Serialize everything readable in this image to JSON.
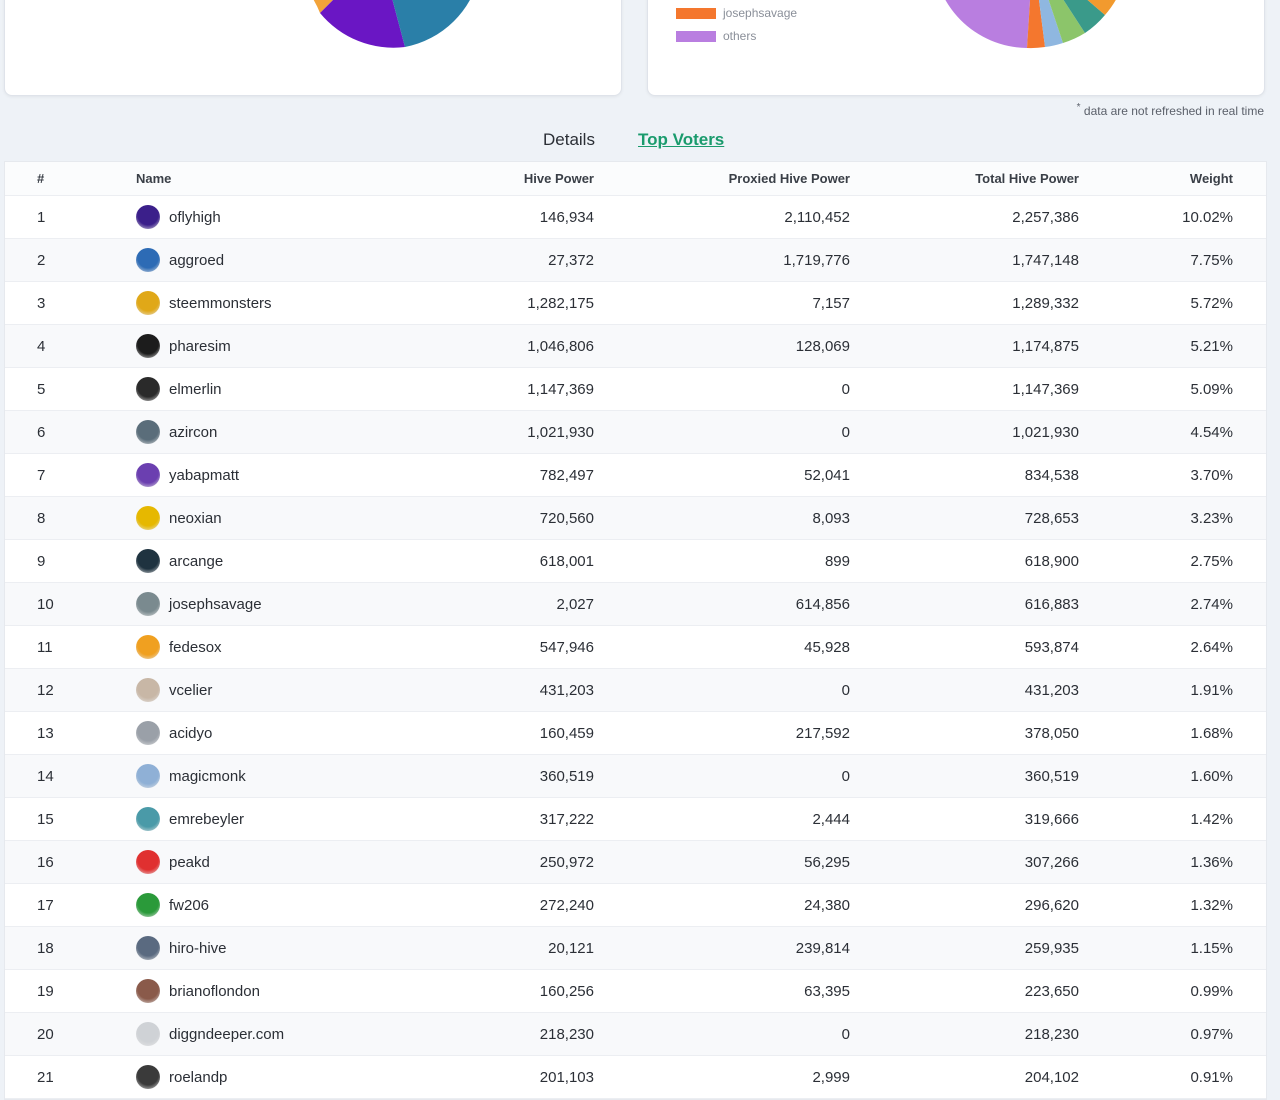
{
  "legend": [
    {
      "label": "josephsavage",
      "color": "#f4772e"
    },
    {
      "label": "others",
      "color": "#b97ee0"
    }
  ],
  "note": "data are not refreshed in real time",
  "tabs": {
    "details": "Details",
    "top_voters": "Top Voters"
  },
  "table": {
    "columns": {
      "rank": "#",
      "name": "Name",
      "hive_power": "Hive Power",
      "proxied": "Proxied Hive Power",
      "total": "Total Hive Power",
      "weight": "Weight"
    },
    "rows": [
      {
        "rank": "1",
        "name": "oflyhigh",
        "hp": "146,934",
        "proxied": "2,110,452",
        "total": "2,257,386",
        "weight": "10.02%",
        "avatar_color": "#3b1f8a"
      },
      {
        "rank": "2",
        "name": "aggroed",
        "hp": "27,372",
        "proxied": "1,719,776",
        "total": "1,747,148",
        "weight": "7.75%",
        "avatar_color": "#2d6bb5"
      },
      {
        "rank": "3",
        "name": "steemmonsters",
        "hp": "1,282,175",
        "proxied": "7,157",
        "total": "1,289,332",
        "weight": "5.72%",
        "avatar_color": "#e0a818"
      },
      {
        "rank": "4",
        "name": "pharesim",
        "hp": "1,046,806",
        "proxied": "128,069",
        "total": "1,174,875",
        "weight": "5.21%",
        "avatar_color": "#1c1c1c"
      },
      {
        "rank": "5",
        "name": "elmerlin",
        "hp": "1,147,369",
        "proxied": "0",
        "total": "1,147,369",
        "weight": "5.09%",
        "avatar_color": "#2a2a2a"
      },
      {
        "rank": "6",
        "name": "azircon",
        "hp": "1,021,930",
        "proxied": "0",
        "total": "1,021,930",
        "weight": "4.54%",
        "avatar_color": "#5a6d7a"
      },
      {
        "rank": "7",
        "name": "yabapmatt",
        "hp": "782,497",
        "proxied": "52,041",
        "total": "834,538",
        "weight": "3.70%",
        "avatar_color": "#6b3fb0"
      },
      {
        "rank": "8",
        "name": "neoxian",
        "hp": "720,560",
        "proxied": "8,093",
        "total": "728,653",
        "weight": "3.23%",
        "avatar_color": "#e6b800"
      },
      {
        "rank": "9",
        "name": "arcange",
        "hp": "618,001",
        "proxied": "899",
        "total": "618,900",
        "weight": "2.75%",
        "avatar_color": "#1f3340"
      },
      {
        "rank": "10",
        "name": "josephsavage",
        "hp": "2,027",
        "proxied": "614,856",
        "total": "616,883",
        "weight": "2.74%",
        "avatar_color": "#7a8a8f"
      },
      {
        "rank": "11",
        "name": "fedesox",
        "hp": "547,946",
        "proxied": "45,928",
        "total": "593,874",
        "weight": "2.64%",
        "avatar_color": "#f0a020"
      },
      {
        "rank": "12",
        "name": "vcelier",
        "hp": "431,203",
        "proxied": "0",
        "total": "431,203",
        "weight": "1.91%",
        "avatar_color": "#c8b7a6"
      },
      {
        "rank": "13",
        "name": "acidyo",
        "hp": "160,459",
        "proxied": "217,592",
        "total": "378,050",
        "weight": "1.68%",
        "avatar_color": "#9aa0a8"
      },
      {
        "rank": "14",
        "name": "magicmonk",
        "hp": "360,519",
        "proxied": "0",
        "total": "360,519",
        "weight": "1.60%",
        "avatar_color": "#8fb0d6"
      },
      {
        "rank": "15",
        "name": "emrebeyler",
        "hp": "317,222",
        "proxied": "2,444",
        "total": "319,666",
        "weight": "1.42%",
        "avatar_color": "#4a9aa8"
      },
      {
        "rank": "16",
        "name": "peakd",
        "hp": "250,972",
        "proxied": "56,295",
        "total": "307,266",
        "weight": "1.36%",
        "avatar_color": "#e03030"
      },
      {
        "rank": "17",
        "name": "fw206",
        "hp": "272,240",
        "proxied": "24,380",
        "total": "296,620",
        "weight": "1.32%",
        "avatar_color": "#2a9a3a"
      },
      {
        "rank": "18",
        "name": "hiro-hive",
        "hp": "20,121",
        "proxied": "239,814",
        "total": "259,935",
        "weight": "1.15%",
        "avatar_color": "#5a6a80"
      },
      {
        "rank": "19",
        "name": "brianoflondon",
        "hp": "160,256",
        "proxied": "63,395",
        "total": "223,650",
        "weight": "0.99%",
        "avatar_color": "#8a5a4a"
      },
      {
        "rank": "20",
        "name": "diggndeeper.com",
        "hp": "218,230",
        "proxied": "0",
        "total": "218,230",
        "weight": "0.97%",
        "avatar_color": "#cfd2d6"
      },
      {
        "rank": "21",
        "name": "roelandp",
        "hp": "201,103",
        "proxied": "2,999",
        "total": "204,102",
        "weight": "0.91%",
        "avatar_color": "#3a3a3a"
      }
    ]
  }
}
